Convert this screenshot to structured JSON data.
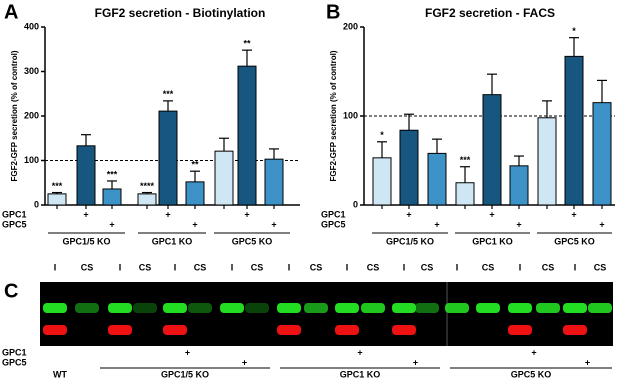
{
  "chart_data": [
    {
      "type": "bar",
      "panel": "A",
      "title": "FGF2 secretion - Biotinylation",
      "y_label": "FGF2-GFP secretion (% of control)",
      "ylim": [
        0,
        400
      ],
      "yticks": [
        0,
        100,
        200,
        300,
        400
      ],
      "ref_line": 100,
      "values": [
        25,
        133,
        36,
        25,
        211,
        52,
        121,
        312,
        103
      ],
      "errors": [
        3,
        25,
        18,
        3,
        23,
        24,
        29,
        36,
        23
      ],
      "colors": [
        "#cfe7f4",
        "#17577f",
        "#3d93c8",
        "#cfe7f4",
        "#17577f",
        "#3d93c8",
        "#cfe7f4",
        "#17577f",
        "#3d93c8"
      ],
      "annotations": [
        "***",
        null,
        "***",
        "****",
        "***",
        "**",
        null,
        "**",
        null
      ],
      "row_labels": [
        "GPC1",
        "GPC5"
      ],
      "gpc1_marks": [
        null,
        "+",
        null,
        null,
        "+",
        null,
        null,
        "+",
        null
      ],
      "gpc5_marks": [
        null,
        null,
        "+",
        null,
        null,
        "+",
        null,
        null,
        "+"
      ],
      "groups": [
        "GPC1/5 KO",
        "GPC1 KO",
        "GPC5 KO"
      ]
    },
    {
      "type": "bar",
      "panel": "B",
      "title": "FGF2 secretion - FACS",
      "y_label": "FGF2-GFP secretion (% of control)",
      "ylim": [
        0,
        200
      ],
      "yticks": [
        0,
        100,
        200
      ],
      "ref_line": 100,
      "values": [
        53,
        84,
        58,
        25,
        124,
        44,
        98,
        167,
        115
      ],
      "errors": [
        18,
        18,
        16,
        18,
        23,
        11,
        19,
        21,
        25
      ],
      "colors": [
        "#cfe7f4",
        "#17577f",
        "#3d93c8",
        "#cfe7f4",
        "#17577f",
        "#3d93c8",
        "#cfe7f4",
        "#17577f",
        "#3d93c8"
      ],
      "annotations": [
        "*",
        null,
        null,
        "***",
        null,
        null,
        null,
        "*",
        null
      ],
      "row_labels": [
        "GPC1",
        "GPC5"
      ],
      "gpc1_marks": [
        null,
        "+",
        null,
        null,
        "+",
        null,
        null,
        "+",
        null
      ],
      "gpc5_marks": [
        null,
        null,
        "+",
        null,
        null,
        "+",
        null,
        null,
        "+"
      ],
      "groups": [
        "GPC1/5 KO",
        "GPC1 KO",
        "GPC5 KO"
      ]
    }
  ],
  "blot": {
    "panel": "C",
    "lanes": [
      "I",
      "CS",
      "I",
      "CS",
      "I",
      "CS",
      "I",
      "CS",
      "I",
      "CS",
      "I",
      "CS",
      "I",
      "CS",
      "I",
      "CS",
      "I",
      "CS",
      "I",
      "CS"
    ],
    "row_labels": [
      "GPC1",
      "GPC5"
    ],
    "gpc1_marks": [
      null,
      null,
      "+",
      null,
      null,
      "+",
      null,
      null,
      "+",
      null
    ],
    "gpc5_marks": [
      null,
      null,
      null,
      "+",
      null,
      null,
      "+",
      null,
      null,
      "+"
    ],
    "groups": [
      "WT",
      "GPC1/5 KO",
      "GPC1 KO",
      "GPC5 KO"
    ]
  }
}
